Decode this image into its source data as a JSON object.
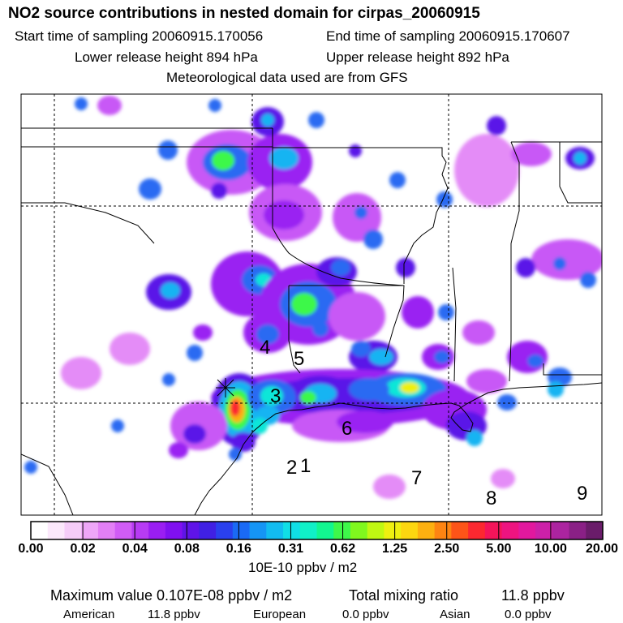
{
  "header": {
    "title": "NO2 source contributions in nested domain for cirpas_20060915",
    "start_label": "Start time of sampling 20060915.170056",
    "end_label": "End time of sampling 20060915.170607",
    "lower_label": "Lower release height  894 hPa",
    "upper_label": "Upper release height  892 hPa",
    "met_label": "Meteorological data used are from GFS"
  },
  "map": {
    "region_labels": [
      "1",
      "2",
      "3",
      "4",
      "5",
      "6",
      "7",
      "8",
      "9"
    ]
  },
  "colorbar": {
    "ticks": [
      "0.00",
      "0.02",
      "0.04",
      "0.08",
      "0.16",
      "0.31",
      "0.62",
      "1.25",
      "2.50",
      "5.00",
      "10.00",
      "20.00"
    ],
    "unit": "10E-10 ppbv / m2",
    "colors": [
      "#ffffff",
      "#fbe8fb",
      "#f5ccf8",
      "#eea6f8",
      "#e27ff5",
      "#d05cf5",
      "#b73bf4",
      "#9a1ef2",
      "#8010f0",
      "#5f14e8",
      "#4020e4",
      "#2a40ee",
      "#1a6af5",
      "#1595f5",
      "#12bcf0",
      "#10dfe6",
      "#10f0c8",
      "#12f690",
      "#3ef84a",
      "#80f81e",
      "#c0f812",
      "#eef010",
      "#fcd610",
      "#fdb010",
      "#fd8412",
      "#fd5418",
      "#fc2830",
      "#f4145a",
      "#ee1480",
      "#e2189e",
      "#cc20a8",
      "#ac24a0",
      "#8a2086",
      "#6a1c6a"
    ]
  },
  "footer": {
    "max_label": "Maximum value  0.107E-08 ppbv / m2",
    "total_label": "Total mixing ratio",
    "total_value": "11.8 ppbv",
    "american_label": "American",
    "american_value": "11.8 ppbv",
    "european_label": "European",
    "european_value": "0.0 ppbv",
    "asian_label": "Asian",
    "asian_value": "0.0 ppbv"
  }
}
